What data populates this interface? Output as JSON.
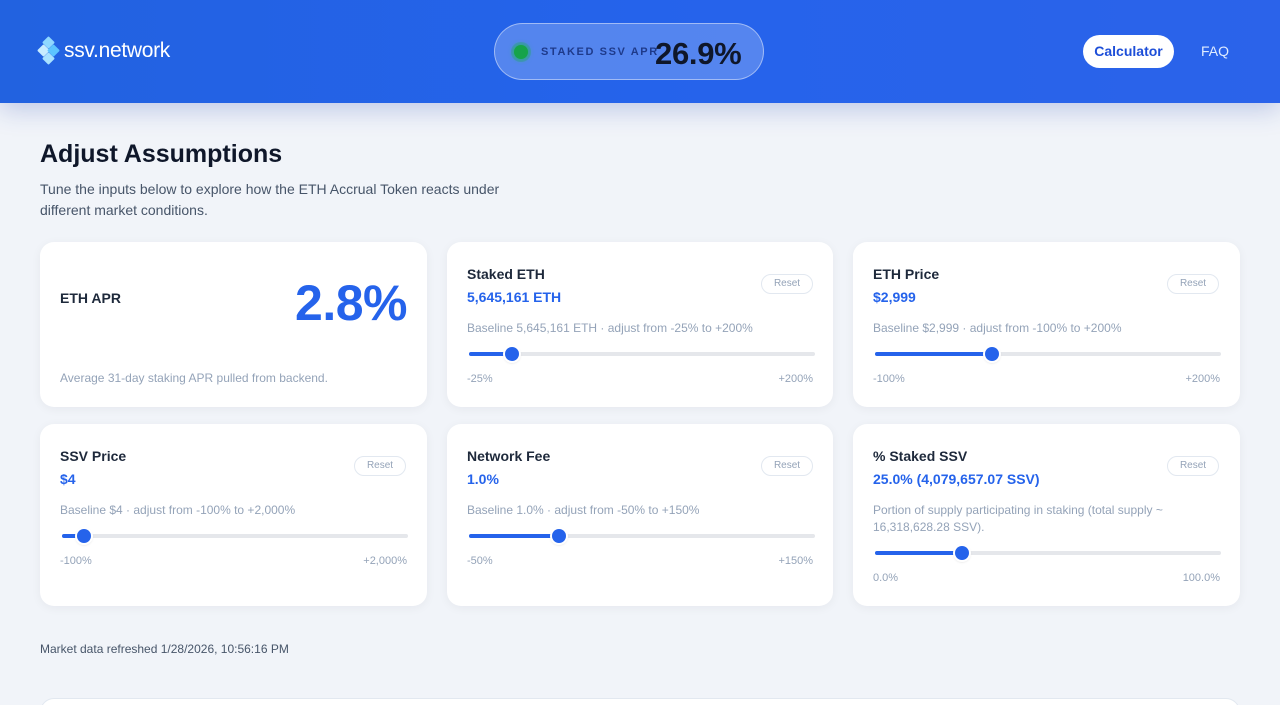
{
  "header": {
    "logo_text": "ssv.network",
    "apr_label": "STAKED SSV APR",
    "apr_value": "26.9%",
    "nav": {
      "calculator": "Calculator",
      "faq": "FAQ"
    }
  },
  "section": {
    "title": "Adjust Assumptions",
    "description": "Tune the inputs below to explore how the ETH Accrual Token reacts under different market conditions."
  },
  "cards": {
    "eth_apr": {
      "title": "ETH APR",
      "value": "2.8%",
      "note": "Average 31-day staking APR pulled from backend."
    },
    "staked_eth": {
      "title": "Staked ETH",
      "value": "5,645,161 ETH",
      "baseline": "Baseline 5,645,161 ETH · adjust from -25% to +200%",
      "reset": "Reset",
      "min": "-25%",
      "max": "+200%",
      "slider_fraction": 0.124
    },
    "eth_price": {
      "title": "ETH Price",
      "value": "$2,999",
      "baseline": "Baseline $2,999 · adjust from -100% to +200%",
      "reset": "Reset",
      "min": "-100%",
      "max": "+200%",
      "slider_fraction": 0.337
    },
    "ssv_price": {
      "title": "SSV Price",
      "value": "$4",
      "baseline": "Baseline $4 · adjust from -100% to +2,000%",
      "reset": "Reset",
      "min": "-100%",
      "max": "+2,000%",
      "slider_fraction": 0.065
    },
    "network_fee": {
      "title": "Network Fee",
      "value": "1.0%",
      "baseline": "Baseline 1.0% · adjust from -50% to +150%",
      "reset": "Reset",
      "min": "-50%",
      "max": "+150%",
      "slider_fraction": 0.26
    },
    "staked_ssv": {
      "title": "% Staked SSV",
      "value": "25.0% (4,079,657.07 SSV)",
      "baseline": "Portion of supply participating in staking (total supply ~ 16,318,628.28 SSV).",
      "reset": "Reset",
      "min": "0.0%",
      "max": "100.0%",
      "slider_fraction": 0.25
    }
  },
  "footer": {
    "refreshed": "Market data refreshed 1/28/2026, 10:56:16 PM"
  },
  "colors": {
    "accent": "#2563eb",
    "header": "#2563eb",
    "status": "#16a34a"
  }
}
